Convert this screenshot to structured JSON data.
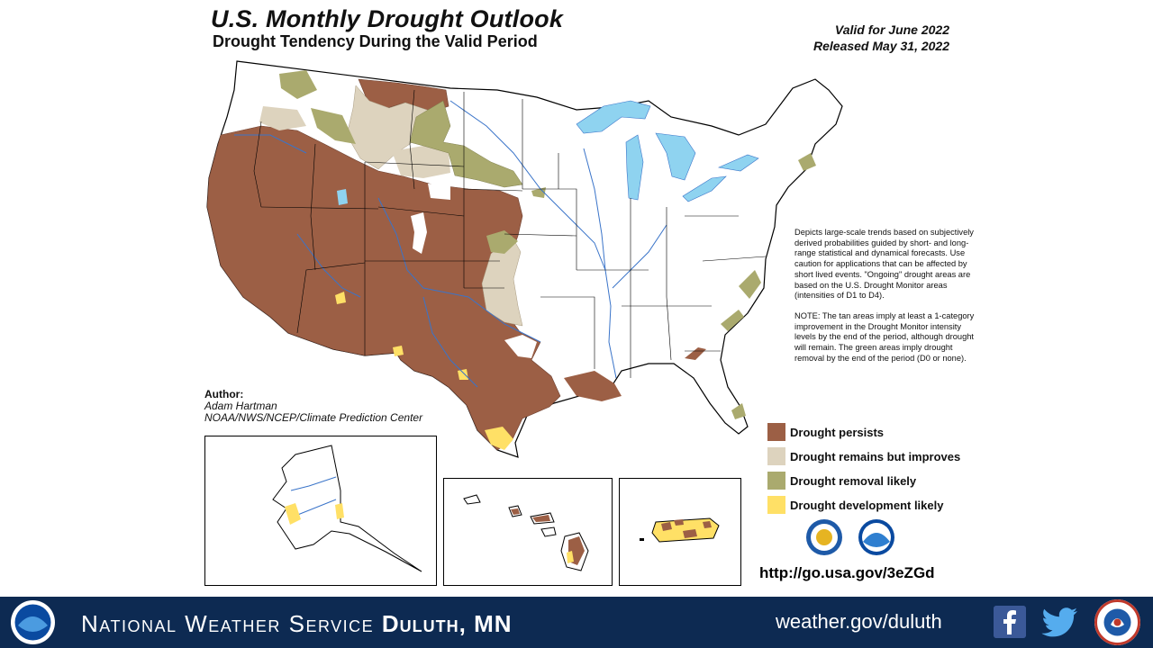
{
  "header": {
    "title": "U.S. Monthly Drought Outlook",
    "subtitle": "Drought Tendency During the Valid Period",
    "valid_for": "Valid for June 2022",
    "released": "Released May 31, 2022"
  },
  "author": {
    "label": "Author:",
    "name": "Adam Hartman",
    "org": "NOAA/NWS/NCEP/Climate Prediction Center"
  },
  "description": {
    "method": "Depicts large-scale trends based on subjectively derived probabilities guided by short- and long-range statistical and dynamical forecasts. Use caution for applications that can be affected by short lived events. \"Ongoing\" drought areas are based on the U.S. Drought Monitor areas (intensities of D1 to D4).",
    "note": "NOTE: The tan areas imply at least a 1-category improvement in the Drought Monitor intensity levels by the end of the period, although drought will remain. The green areas imply drought removal by the end of the period (D0 or none)."
  },
  "legend": [
    {
      "label": "Drought persists",
      "color": "#9c5f45"
    },
    {
      "label": "Drought remains but improves",
      "color": "#ddd3be"
    },
    {
      "label": "Drought removal likely",
      "color": "#aaaa6e"
    },
    {
      "label": "Drought development likely",
      "color": "#ffe066"
    }
  ],
  "link": "http://go.usa.gov/3eZGd",
  "colors": {
    "persists": "#9c5f45",
    "improves": "#ddd3be",
    "removal": "#aaaa6e",
    "development": "#ffe066",
    "water": "#8fd3f0",
    "rivers": "#3a74c9",
    "footer_bg": "#0d2a52"
  },
  "footer": {
    "office_prefix": "National Weather Service",
    "office": "Duluth, MN",
    "website": "weather.gov/duluth",
    "social_icons": [
      "facebook-icon",
      "twitter-icon"
    ]
  },
  "logos": [
    "noaa-logo",
    "nws-logo",
    "department-of-commerce-seal"
  ]
}
